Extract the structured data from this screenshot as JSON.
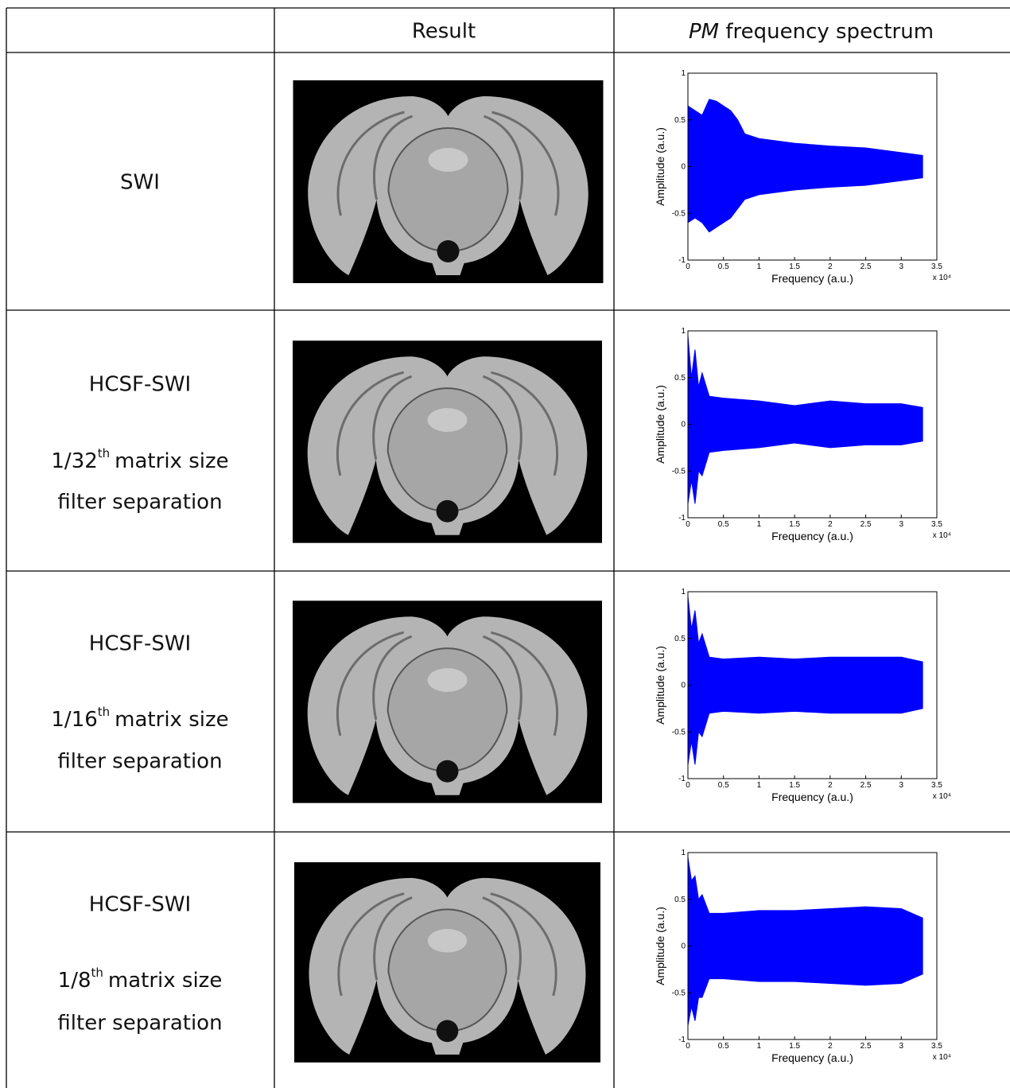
{
  "header": {
    "result": "Result",
    "spectrum_italic": "PM",
    "spectrum_rest": "frequency spectrum"
  },
  "rows": [
    {
      "method": "SWI"
    },
    {
      "method": "HCSF-SWI",
      "fraction": "1/32",
      "suffix": "th",
      "size": "matrix size",
      "separation": "filter separation"
    },
    {
      "method": "HCSF-SWI",
      "fraction": "1/16",
      "suffix": "th",
      "size": "matrix size",
      "separation": "filter separation"
    },
    {
      "method": "HCSF-SWI",
      "fraction": "1/8",
      "suffix": "th",
      "size": "matrix size",
      "separation": "filter separation"
    }
  ],
  "chart_data": [
    {
      "type": "area",
      "ylabel": "Amplitude (a.u.)",
      "xlabel": "Frequency (a.u.)",
      "x_multiplier": "x 10⁴",
      "color": "#0000ff",
      "xlim": [
        0,
        3.5
      ],
      "ylim": [
        -1,
        1
      ],
      "xticks": [
        0,
        0.5,
        1,
        1.5,
        2,
        2.5,
        3,
        3.5
      ],
      "yticks": [
        -1,
        -0.5,
        0,
        0.5,
        1
      ],
      "x": [
        0,
        0.1,
        0.2,
        0.3,
        0.4,
        0.5,
        0.6,
        0.7,
        0.8,
        1,
        1.5,
        2,
        2.5,
        3,
        3.3
      ],
      "upper": [
        0.65,
        0.6,
        0.55,
        0.72,
        0.7,
        0.65,
        0.6,
        0.5,
        0.35,
        0.3,
        0.25,
        0.22,
        0.2,
        0.15,
        0.12
      ],
      "lower": [
        -0.6,
        -0.55,
        -0.6,
        -0.7,
        -0.65,
        -0.6,
        -0.55,
        -0.45,
        -0.35,
        -0.3,
        -0.25,
        -0.22,
        -0.2,
        -0.15,
        -0.12
      ]
    },
    {
      "type": "area",
      "ylabel": "Amplitude (a.u.)",
      "xlabel": "Frequency (a.u.)",
      "x_multiplier": "x 10⁴",
      "color": "#0000ff",
      "xlim": [
        0,
        3.5
      ],
      "ylim": [
        -1,
        1
      ],
      "xticks": [
        0,
        0.5,
        1,
        1.5,
        2,
        2.5,
        3,
        3.5
      ],
      "yticks": [
        -1,
        -0.5,
        0,
        0.5,
        1
      ],
      "x": [
        0,
        0.05,
        0.1,
        0.15,
        0.2,
        0.3,
        0.5,
        1,
        1.5,
        2,
        2.5,
        3,
        3.3
      ],
      "upper": [
        0.95,
        0.5,
        0.8,
        0.4,
        0.55,
        0.3,
        0.28,
        0.25,
        0.2,
        0.25,
        0.22,
        0.22,
        0.18
      ],
      "lower": [
        -0.85,
        -0.6,
        -0.85,
        -0.5,
        -0.55,
        -0.3,
        -0.28,
        -0.25,
        -0.2,
        -0.25,
        -0.22,
        -0.22,
        -0.18
      ]
    },
    {
      "type": "area",
      "ylabel": "Amplitude (a.u.)",
      "xlabel": "Frequency (a.u.)",
      "x_multiplier": "x 10⁴",
      "color": "#0000ff",
      "xlim": [
        0,
        3.5
      ],
      "ylim": [
        -1,
        1
      ],
      "xticks": [
        0,
        0.5,
        1,
        1.5,
        2,
        2.5,
        3,
        3.5
      ],
      "yticks": [
        -1,
        -0.5,
        0,
        0.5,
        1
      ],
      "x": [
        0,
        0.05,
        0.1,
        0.15,
        0.2,
        0.3,
        0.5,
        1,
        1.5,
        2,
        2.5,
        3,
        3.3
      ],
      "upper": [
        0.95,
        0.6,
        0.8,
        0.45,
        0.55,
        0.3,
        0.28,
        0.3,
        0.28,
        0.3,
        0.3,
        0.3,
        0.25
      ],
      "lower": [
        -0.85,
        -0.6,
        -0.85,
        -0.5,
        -0.55,
        -0.3,
        -0.28,
        -0.3,
        -0.28,
        -0.3,
        -0.3,
        -0.3,
        -0.25
      ]
    },
    {
      "type": "area",
      "ylabel": "Amplitude (a.u.)",
      "xlabel": "Frequency (a.u.)",
      "x_multiplier": "x 10⁴",
      "color": "#0000ff",
      "xlim": [
        0,
        3.5
      ],
      "ylim": [
        -1,
        1
      ],
      "xticks": [
        0,
        0.5,
        1,
        1.5,
        2,
        2.5,
        3,
        3.5
      ],
      "yticks": [
        -1,
        -0.5,
        0,
        0.5,
        1
      ],
      "x": [
        0,
        0.05,
        0.1,
        0.15,
        0.2,
        0.3,
        0.5,
        1,
        1.5,
        2,
        2.5,
        3,
        3.3
      ],
      "upper": [
        0.95,
        0.7,
        0.75,
        0.5,
        0.55,
        0.35,
        0.35,
        0.38,
        0.38,
        0.4,
        0.42,
        0.4,
        0.3
      ],
      "lower": [
        -0.85,
        -0.65,
        -0.8,
        -0.55,
        -0.55,
        -0.35,
        -0.35,
        -0.38,
        -0.38,
        -0.4,
        -0.42,
        -0.4,
        -0.3
      ]
    }
  ]
}
